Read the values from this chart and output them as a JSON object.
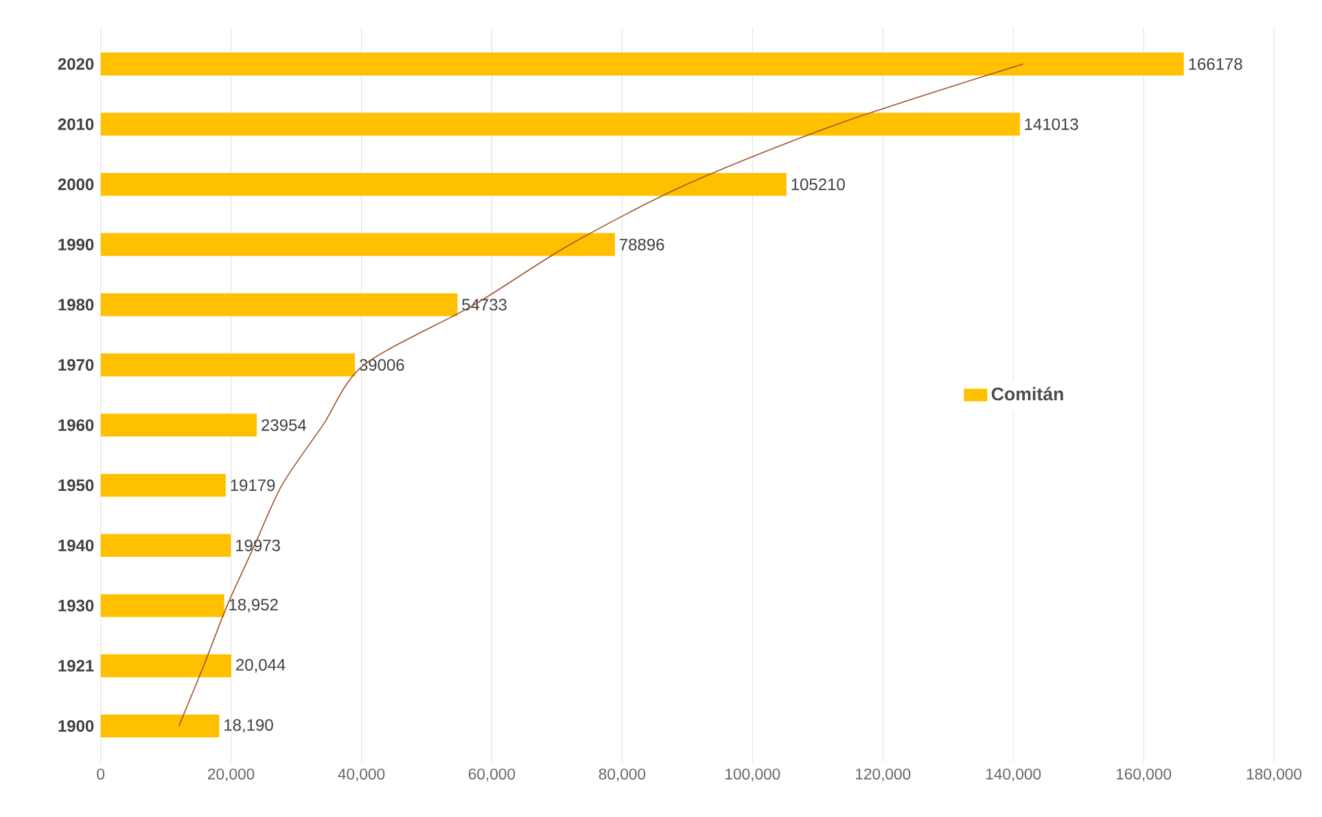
{
  "chart_data": {
    "type": "bar",
    "orientation": "horizontal",
    "categories": [
      "2020",
      "2010",
      "2000",
      "1990",
      "1980",
      "1970",
      "1960",
      "1950",
      "1940",
      "1930",
      "1921",
      "1900"
    ],
    "series": [
      {
        "name": "Comitán",
        "color": "#ffc000",
        "values": [
          166178,
          141013,
          105210,
          78896,
          54733,
          39006,
          23954,
          19179,
          19973,
          18952,
          20044,
          18190
        ],
        "value_labels": [
          "166178",
          "141013",
          "105210",
          "78896",
          "54733",
          "39006",
          "23954",
          "19179",
          "19973",
          "18,952",
          "20,044",
          "18,190"
        ]
      },
      {
        "type": "line",
        "color": "#a0522d",
        "values": [
          141500,
          113000,
          89900,
          72000,
          57300,
          40400,
          34100,
          27800,
          23600,
          19400,
          15800,
          12000
        ]
      }
    ],
    "xlim": [
      0,
      180000
    ],
    "xticks": [
      0,
      {
        "value": 20000,
        "label": "20,000"
      },
      {
        "value": 40000,
        "label": "40,000"
      },
      {
        "value": 60000,
        "label": "60,000"
      },
      {
        "value": 80000,
        "label": "80,000"
      },
      {
        "value": 100000,
        "label": "100,000"
      },
      {
        "value": 120000,
        "label": "120,000"
      },
      {
        "value": 140000,
        "label": "140,000"
      },
      {
        "value": 160000,
        "label": "160,000"
      },
      {
        "value": 180000,
        "label": "180,000"
      }
    ],
    "grid": "x",
    "legend": "right"
  }
}
